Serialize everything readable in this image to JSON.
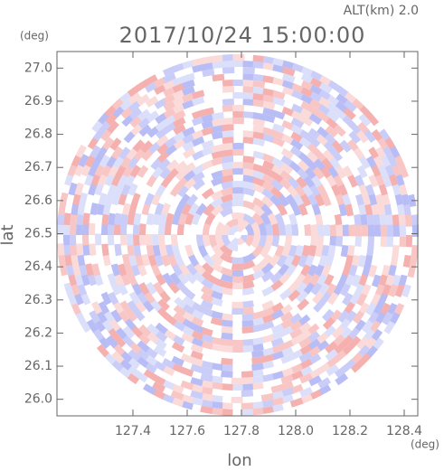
{
  "chart_data": {
    "type": "radar-ppi",
    "title": "2017/10/24 15:00:00",
    "altitude_label": "ALT(km) 2.0",
    "x_label": "lon",
    "y_label": "lat",
    "x_unit": "(deg)",
    "y_unit": "(deg)",
    "xlim": [
      127.12,
      128.45
    ],
    "ylim": [
      25.95,
      27.05
    ],
    "xticks": [
      127.4,
      127.6,
      127.8,
      {
        "value": 128.0,
        "label": "128.0"
      },
      128.2,
      128.4
    ],
    "yticks": [
      {
        "value": 26.0,
        "label": "26.0"
      },
      26.1,
      26.2,
      26.3,
      26.4,
      26.5,
      26.6,
      26.7,
      26.8,
      26.9,
      {
        "value": 27.0,
        "label": "27.0"
      }
    ]
  }
}
